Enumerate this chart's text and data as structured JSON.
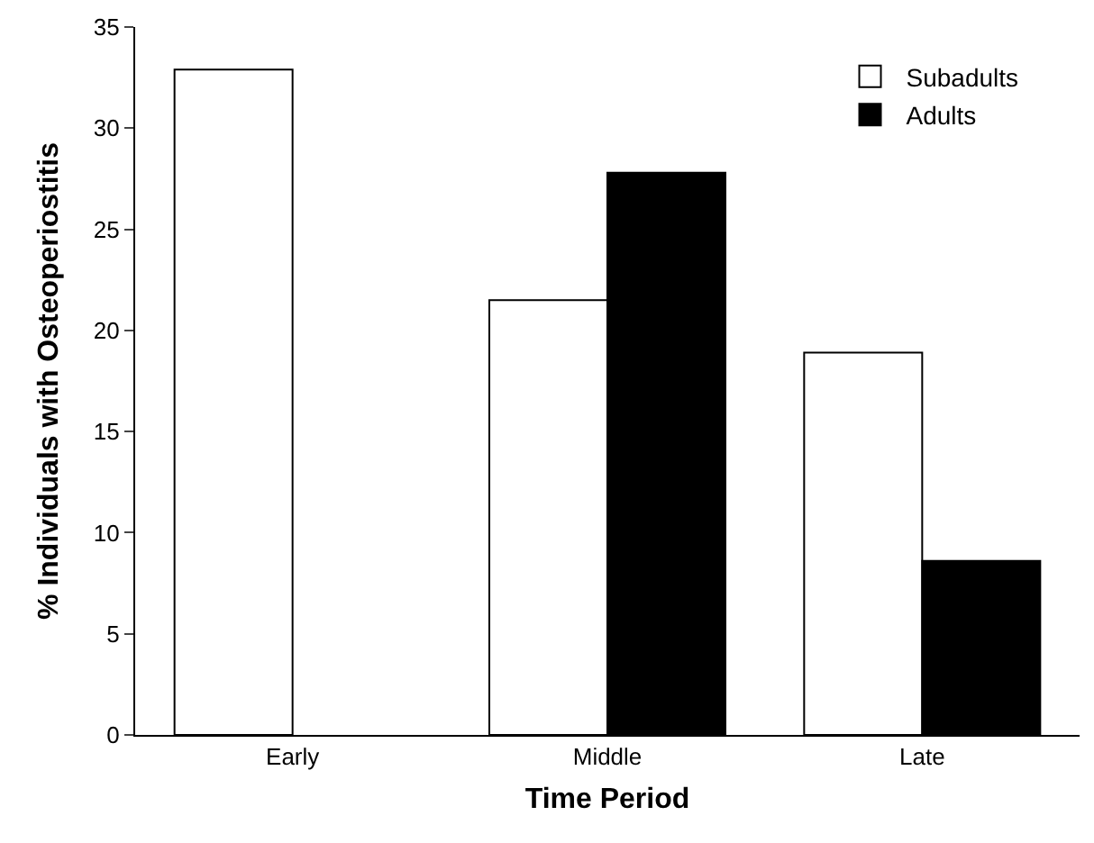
{
  "chart_data": {
    "type": "bar",
    "xlabel": "Time Period",
    "ylabel": "% Individuals with Osteoperiostitis",
    "categories": [
      "Early",
      "Middle",
      "Late"
    ],
    "series": [
      {
        "name": "Subadults",
        "color": "#ffffff",
        "values": [
          32.9,
          21.5,
          18.9
        ]
      },
      {
        "name": "Adults",
        "color": "#000000",
        "values": [
          null,
          27.8,
          8.6
        ]
      }
    ],
    "ylim": [
      0,
      35
    ],
    "yticks": [
      0,
      5,
      10,
      15,
      20,
      25,
      30,
      35
    ],
    "legend": "top right"
  }
}
